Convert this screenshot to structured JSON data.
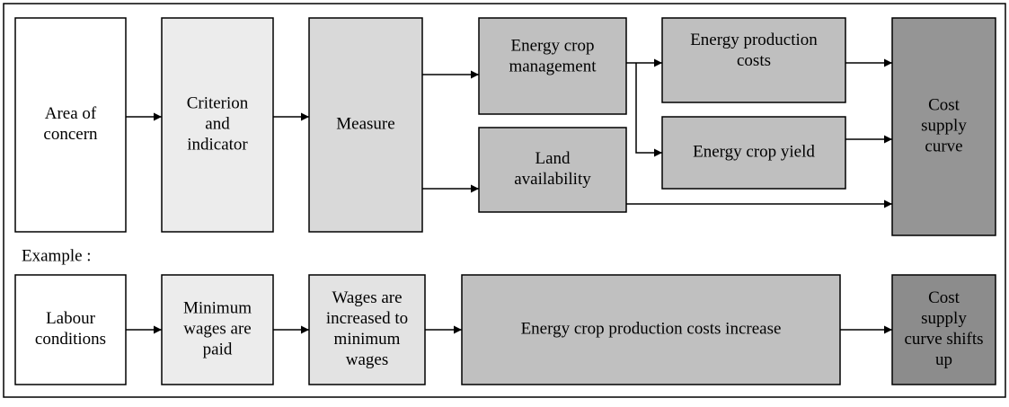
{
  "nodes": [
    {
      "lines": [
        "Area of",
        "concern"
      ]
    },
    {
      "lines": [
        "Criterion",
        "and",
        "indicator"
      ]
    },
    {
      "lines": [
        "Measure"
      ]
    },
    {
      "lines": [
        "Energy crop",
        "management"
      ]
    },
    {
      "lines": [
        "Land",
        "availability"
      ]
    },
    {
      "lines": [
        "Energy production",
        "costs"
      ]
    },
    {
      "lines": [
        "Energy crop yield"
      ]
    },
    {
      "lines": [
        "Cost",
        "supply",
        "curve"
      ]
    }
  ],
  "example_label": "Example :",
  "example_nodes": [
    {
      "lines": [
        "Labour",
        "conditions"
      ]
    },
    {
      "lines": [
        "Minimum",
        "wages are",
        "paid"
      ]
    },
    {
      "lines": [
        "Wages are",
        "increased to",
        "minimum",
        "wages"
      ]
    },
    {
      "lines": [
        "Energy crop production costs increase"
      ]
    },
    {
      "lines": [
        "Cost",
        "supply",
        "curve shifts",
        "up"
      ]
    }
  ]
}
